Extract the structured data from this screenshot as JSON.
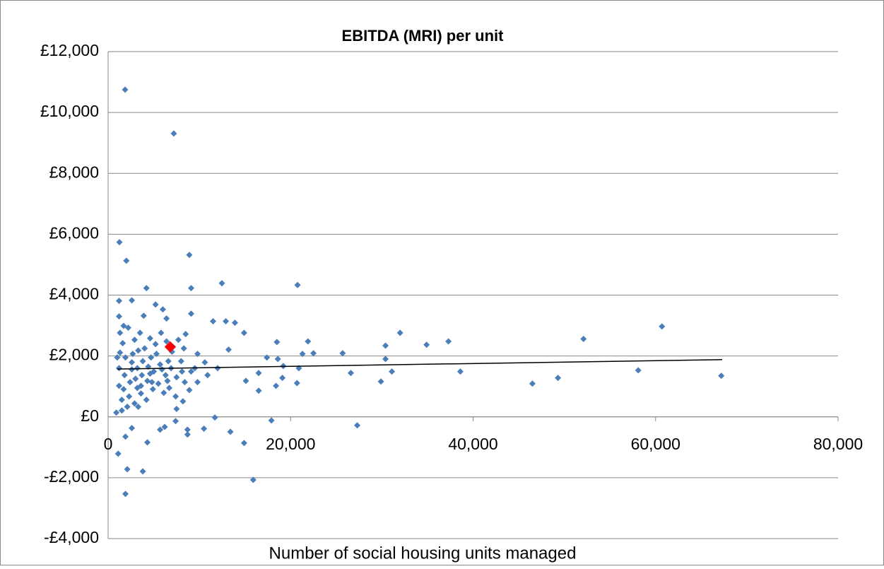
{
  "chart_data": {
    "type": "scatter",
    "title": "EBITDA (MRI) per unit",
    "x_label": "Number of social housing units managed",
    "xlim": [
      0,
      80000
    ],
    "xticks": [
      0,
      {
        "value": 20000,
        "label": "20,000"
      },
      {
        "value": 40000,
        "label": "40,000"
      },
      {
        "value": 60000,
        "label": "60,000"
      },
      {
        "value": 80000,
        "label": "80,000"
      }
    ],
    "ylim": [
      -4000,
      12000
    ],
    "yticks": [
      {
        "value": -4000,
        "label": "-£4,000"
      },
      {
        "value": -2000,
        "label": "-£2,000"
      },
      {
        "value": 0,
        "label": "£0"
      },
      {
        "value": 2000,
        "label": "£2,000"
      },
      {
        "value": 4000,
        "label": "£4,000"
      },
      {
        "value": 6000,
        "label": "£6,000"
      },
      {
        "value": 8000,
        "label": "£8,000"
      },
      {
        "value": 10000,
        "label": "£10,000"
      },
      {
        "value": 12000,
        "label": "£12,000"
      }
    ],
    "grid": true,
    "series": [
      {
        "color": "#4a7ebb",
        "x": [
          1860,
          7200,
          1240,
          2000,
          8900,
          12470,
          20760,
          4200,
          32000,
          34900,
          37300,
          30400,
          52100,
          60700,
          58100,
          67200,
          49300,
          46500,
          38600,
          31100,
          30400,
          29900,
          26600,
          25700,
          27300,
          22500,
          21900,
          21300,
          20900,
          20700,
          18500,
          18600,
          19200,
          19100,
          18400,
          17900,
          17400,
          16500,
          16500,
          15900,
          15100,
          14900,
          14900,
          13900,
          12900,
          11500,
          13400,
          11700,
          10500,
          8700,
          8700,
          13200,
          12000,
          10900,
          9800,
          8900,
          8200,
          9100,
          9100,
          8500,
          6400,
          6000,
          5200,
          2600,
          1200,
          1200,
          3900,
          4300,
          2600,
          1900,
          1100,
          2100,
          3800,
          1900,
          1500,
          900,
          3300,
          5700,
          6200,
          7400,
          7500,
          1300,
          1700,
          2200,
          2900,
          3500,
          4000,
          4600,
          5200,
          5800,
          6400,
          7000,
          7700,
          8300,
          1300,
          1900,
          2600,
          3200,
          3800,
          4400,
          5000,
          5700,
          6300,
          6900,
          7500,
          8100,
          1200,
          1800,
          2400,
          3000,
          3600,
          4300,
          4900,
          5500,
          6100,
          6700,
          7400,
          1700,
          2300,
          2900,
          3600,
          4200,
          4800,
          1500,
          2100,
          1200,
          2700,
          3300,
          4700,
          5300,
          6600,
          8000,
          9500,
          10600,
          9800,
          7100,
          9100,
          8400,
          1600,
          1000,
          3700,
          5900,
          2600,
          3200,
          4600,
          6500
        ],
        "values": [
          10750,
          9310,
          5740,
          5130,
          5320,
          4390,
          4330,
          4230,
          2760,
          2370,
          2480,
          2340,
          2560,
          2970,
          1530,
          1350,
          1280,
          1090,
          1490,
          1490,
          1900,
          1160,
          1440,
          2090,
          -280,
          2090,
          2480,
          2070,
          1600,
          1110,
          2460,
          1900,
          1670,
          1280,
          1020,
          -120,
          1950,
          1440,
          860,
          -2070,
          1180,
          -860,
          2760,
          3090,
          3140,
          3140,
          -490,
          -20,
          -390,
          -420,
          -580,
          2210,
          1600,
          1370,
          1140,
          880,
          510,
          3390,
          4230,
          2720,
          3230,
          3530,
          3690,
          3830,
          3810,
          3300,
          3320,
          -840,
          -370,
          -650,
          -1210,
          -1720,
          -1790,
          -2530,
          210,
          140,
          330,
          -420,
          -330,
          -140,
          260,
          2760,
          2990,
          2930,
          2530,
          2760,
          2250,
          2580,
          2390,
          2760,
          2480,
          2140,
          2530,
          2250,
          2110,
          1950,
          1790,
          1600,
          1830,
          1650,
          1490,
          1720,
          1370,
          1600,
          1300,
          1490,
          1600,
          1370,
          1140,
          1250,
          1020,
          1180,
          910,
          1090,
          790,
          950,
          670,
          910,
          670,
          440,
          770,
          560,
          1140,
          560,
          330,
          1020,
          2070,
          2180,
          1950,
          2070,
          1830,
          1830,
          1600,
          1790,
          2070,
          2300,
          1490,
          1140,
          2420,
          1950,
          1370,
          1560,
          1560,
          950,
          1420,
          1180
        ]
      },
      {
        "color": "#ff0000",
        "x": [
          6800
        ],
        "values": [
          2300
        ]
      }
    ],
    "trendline": {
      "color": "#000000",
      "x": [
        1000,
        67300
      ],
      "values": [
        1570,
        1880
      ]
    }
  }
}
